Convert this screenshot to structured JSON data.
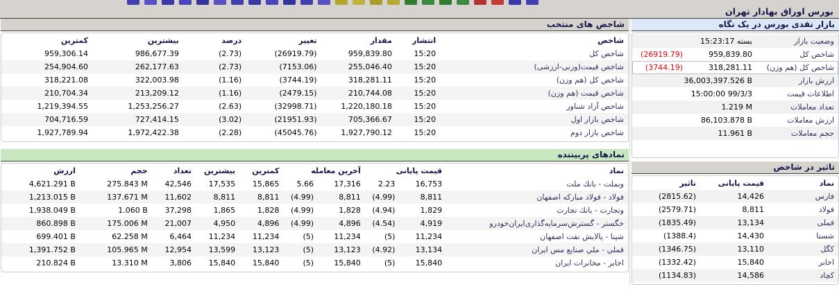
{
  "page_title": "بورس اوراق بهادار تهران",
  "toolbar_icon_colors": [
    "#4040b0",
    "#5b4fc4",
    "#3838a6",
    "#4a44bc",
    "#3333a0",
    "#5b4fc4",
    "#4040b0",
    "#3838a6",
    "#4a44bc",
    "#3333a0",
    "#4040b0",
    "#5b4fc4",
    "#b3a62e",
    "#c0b23a",
    "#a99e28",
    "#b7aa30",
    "#2f7d33",
    "#3c8a3f",
    "#2f7d33",
    "#3c8a3f",
    "#b53030",
    "#c43b3b",
    "#3a3aae",
    "#4040b0"
  ],
  "colors": {
    "negative": "#e60000",
    "positive": "#008800",
    "header_blue": "#dce8f8",
    "header_green": "#c8e6bf",
    "chrome_gray": "#d6d3ce",
    "label_navy": "#30315c"
  },
  "market_overview": {
    "header": "بازار نقدی بورس در یک نگاه",
    "rows": [
      {
        "label": "وضعیت بازار",
        "value": "بسته 15:23:17",
        "change": "",
        "shade": true
      },
      {
        "label": "شاخص کل",
        "value": "959,839.80",
        "change": "(26919.79)"
      },
      {
        "label": "شاخص کل (هم وزن)",
        "value": "318,281.11",
        "change": "(3744.19)",
        "selected": true
      },
      {
        "label": "ارزش بازار",
        "value": "36,003,397.526 B",
        "change": "",
        "shade": true
      },
      {
        "label": "اطلاعات قیمت",
        "value": "15:00:00 99/3/3",
        "change": ""
      },
      {
        "label": "تعداد معاملات",
        "value": "1.219 M",
        "change": "",
        "shade": true
      },
      {
        "label": "ارزش معاملات",
        "value": "86,103.878 B",
        "change": ""
      },
      {
        "label": "حجم معاملات",
        "value": "11.961 B",
        "change": "",
        "shade": true
      }
    ]
  },
  "selected_indices": {
    "header": "شاخص های منتخب",
    "col_defs": [
      {
        "key": "name",
        "label": "شاخص",
        "type": "text"
      },
      {
        "key": "time",
        "label": "انتشار",
        "type": "num"
      },
      {
        "key": "value",
        "label": "مقدار",
        "type": "num"
      },
      {
        "key": "change",
        "label": "تغییر",
        "type": "chg"
      },
      {
        "key": "percent",
        "label": "درصد",
        "type": "chg"
      },
      {
        "key": "high",
        "label": "بیشترین",
        "type": "num"
      },
      {
        "key": "low",
        "label": "کمترین",
        "type": "num"
      }
    ],
    "rows": [
      {
        "name": "شاخص کل",
        "time": "15:20",
        "value": "959,839.80",
        "change": "(26919.79)",
        "percent": "(2.73)",
        "high": "986,677.39",
        "low": "959,306.14"
      },
      {
        "name": "شاخص قیمت(وزنی-ارزشی)",
        "time": "15:20",
        "value": "255,046.40",
        "change": "(7153.06)",
        "percent": "(2.73)",
        "high": "262,177.63",
        "low": "254,904.60"
      },
      {
        "name": "شاخص کل (هم وزن)",
        "time": "15:20",
        "value": "318,281.11",
        "change": "(3744.19)",
        "percent": "(1.16)",
        "high": "322,003.98",
        "low": "318,221.08"
      },
      {
        "name": "شاخص قیمت (هم وزن)",
        "time": "15:20",
        "value": "210,744.08",
        "change": "(2479.15)",
        "percent": "(1.16)",
        "high": "213,209.12",
        "low": "210,704.34"
      },
      {
        "name": "شاخص آزاد شناور",
        "time": "15:20",
        "value": "1,220,180.18",
        "change": "(32998.71)",
        "percent": "(2.63)",
        "high": "1,253,256.27",
        "low": "1,219,394.55"
      },
      {
        "name": "شاخص بازار اول",
        "time": "15:20",
        "value": "705,366.67",
        "change": "(21951.93)",
        "percent": "(3.02)",
        "high": "727,414.15",
        "low": "704,716.59"
      },
      {
        "name": "شاخص بازار دوم",
        "time": "15:20",
        "value": "1,927,790.12",
        "change": "(45045.76)",
        "percent": "(2.28)",
        "high": "1,972,422.38",
        "low": "1,927,789.94"
      }
    ]
  },
  "most_viewed": {
    "header": "نمادهای پربیننده",
    "col_defs": [
      {
        "key": "name",
        "label": "نماد",
        "type": "text"
      },
      {
        "key": "close",
        "label": "قیمت پایانی",
        "type": "num"
      },
      {
        "key": "close_pct",
        "label": "",
        "type": "chg"
      },
      {
        "key": "last",
        "label": "آخرین معامله",
        "type": "num"
      },
      {
        "key": "last_pct",
        "label": "",
        "type": "chg"
      },
      {
        "key": "low",
        "label": "کمترین",
        "type": "num"
      },
      {
        "key": "high",
        "label": "بیشترین",
        "type": "num"
      },
      {
        "key": "count",
        "label": "تعداد",
        "type": "num"
      },
      {
        "key": "volume",
        "label": "حجم",
        "type": "num"
      },
      {
        "key": "value",
        "label": "ارزش",
        "type": "num"
      }
    ],
    "rows": [
      {
        "name": "وبملت - بانك ملت",
        "close": "16,753",
        "close_pct": "2.23",
        "last": "17,316",
        "last_pct": "5.66",
        "low": "15,865",
        "high": "17,535",
        "count": "42,546",
        "volume": "275.843 M",
        "value": "4,621.291 B"
      },
      {
        "name": "فولاد - فولاد مباركه اصفهان",
        "close": "8,811",
        "close_pct": "(4.99)",
        "last": "8,811",
        "last_pct": "(4.99)",
        "low": "8,811",
        "high": "8,811",
        "count": "11,602",
        "volume": "137.671 M",
        "value": "1,213.015 B"
      },
      {
        "name": "وتجارت - بانك تجارت",
        "close": "1,829",
        "close_pct": "(4.94)",
        "last": "1,828",
        "last_pct": "(4.99)",
        "low": "1,828",
        "high": "1,865",
        "count": "37,298",
        "volume": "1.060 B",
        "value": "1,938.049 B"
      },
      {
        "name": "خگستر - گسترش‌سرمایه‌گذاری‌ایران‌خودرو",
        "close": "4,919",
        "close_pct": "(4.54)",
        "last": "4,896",
        "last_pct": "(4.99)",
        "low": "4,896",
        "high": "4,950",
        "count": "21,007",
        "volume": "175.006 M",
        "value": "860.898 B"
      },
      {
        "name": "شپنا - پالایش نفت اصفهان",
        "close": "11,234",
        "close_pct": "(5)",
        "last": "11,234",
        "last_pct": "(5)",
        "low": "11,234",
        "high": "11,234",
        "count": "6,464",
        "volume": "62.258 M",
        "value": "699.401 B"
      },
      {
        "name": "فملي - ملي صنايع مس ايران",
        "close": "13,134",
        "close_pct": "(4.92)",
        "last": "13,123",
        "last_pct": "(5)",
        "low": "13,123",
        "high": "13,599",
        "count": "12,954",
        "volume": "105.965 M",
        "value": "1,391.752 B"
      },
      {
        "name": "اخابر - مخابرات ايران",
        "close": "15,840",
        "close_pct": "(5)",
        "last": "15,840",
        "last_pct": "(5)",
        "low": "15,840",
        "high": "15,840",
        "count": "3,806",
        "volume": "13.310 M",
        "value": "210.824 B"
      }
    ]
  },
  "index_impact": {
    "header": "تاثیر در شاخص",
    "col_defs": [
      {
        "key": "name",
        "label": "نماد",
        "type": "text"
      },
      {
        "key": "close",
        "label": "قیمت پایانی",
        "type": "num"
      },
      {
        "key": "impact",
        "label": "تاثیر",
        "type": "chg"
      }
    ],
    "rows": [
      {
        "name": "فارس",
        "close": "14,426",
        "impact": "(2815.62)"
      },
      {
        "name": "فولاد",
        "close": "8,811",
        "impact": "(2579.71)"
      },
      {
        "name": "فملی",
        "close": "13,134",
        "impact": "(1835.49)"
      },
      {
        "name": "شستا",
        "close": "14,430",
        "impact": "(1388.4)"
      },
      {
        "name": "کگل",
        "close": "13,110",
        "impact": "(1346.75)"
      },
      {
        "name": "اخابر",
        "close": "15,840",
        "impact": "(1332.42)"
      },
      {
        "name": "کچاد",
        "close": "14,586",
        "impact": "(1134.83)"
      }
    ]
  }
}
